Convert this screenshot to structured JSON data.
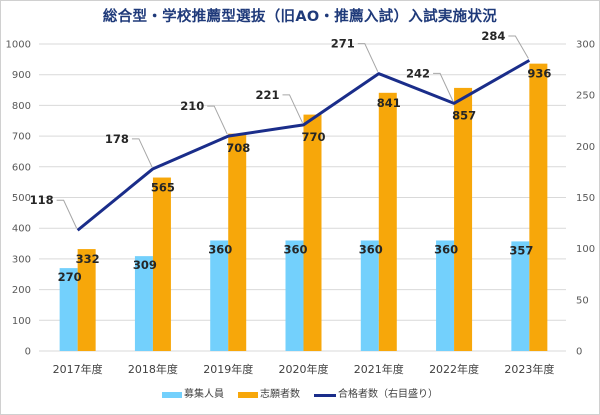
{
  "chart_data": {
    "type": "bar",
    "title": "総合型・学校推薦型選抜（旧AO・推薦入試）入試実施状況",
    "categories": [
      "2017年度",
      "2018年度",
      "2019年度",
      "2020年度",
      "2021年度",
      "2022年度",
      "2023年度"
    ],
    "series": [
      {
        "name": "募集人員",
        "type": "bar",
        "axis": "left",
        "color": "#73d0fc",
        "values": [
          270,
          309,
          360,
          360,
          360,
          360,
          357
        ]
      },
      {
        "name": "志願者数",
        "type": "bar",
        "axis": "left",
        "color": "#f7a70a",
        "values": [
          332,
          565,
          708,
          770,
          841,
          857,
          936
        ]
      },
      {
        "name": "合格者数（右目盛り）",
        "type": "line",
        "axis": "right",
        "color": "#1a2d8a",
        "values": [
          118,
          178,
          210,
          221,
          271,
          242,
          284
        ]
      }
    ],
    "y_left": {
      "min": 0,
      "max": 1000,
      "ticks": [
        0,
        100,
        200,
        300,
        400,
        500,
        600,
        700,
        800,
        900,
        1000
      ]
    },
    "y_right": {
      "min": 0,
      "max": 300,
      "ticks": [
        0,
        50,
        100,
        150,
        200,
        250,
        300
      ]
    },
    "grid": true,
    "legend": "bottom"
  }
}
